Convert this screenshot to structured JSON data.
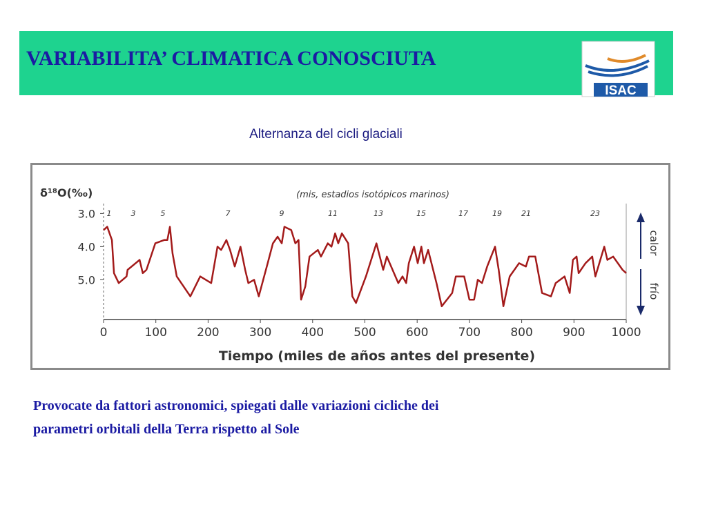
{
  "header": {
    "title": "VARIABILITA’ CLIMATICA CONOSCIUTA",
    "logo": "ISAC"
  },
  "subtitle": "Alternanza del cicli glaciali",
  "chart_data": {
    "type": "line",
    "y_label": "δ¹⁸O(‰)",
    "x_label": "Tiempo (miles de años antes del presente)",
    "annotation": "(mis, estadios isotópicos marinos)",
    "stages": [
      "1",
      "3",
      "5",
      "7",
      "9",
      "11",
      "13",
      "15",
      "17",
      "19",
      "21",
      "23"
    ],
    "side_labels": [
      "calor",
      "frío"
    ],
    "y_reversed": true,
    "xlim": [
      0,
      1000
    ],
    "xticks": [
      0,
      100,
      200,
      300,
      400,
      500,
      600,
      700,
      800,
      900,
      1000
    ],
    "ylim": [
      2.7,
      6.2
    ],
    "yticks": [
      {
        "value": 3,
        "label": "3.0"
      },
      {
        "value": 4,
        "label": "4.0"
      },
      {
        "value": 5,
        "label": "5.0"
      }
    ],
    "series": [
      {
        "color": "#a31a1a",
        "x": [
          0,
          7,
          16,
          20,
          29,
          44,
          46,
          69,
          75,
          82,
          99,
          116,
          122,
          127,
          132,
          140,
          166,
          185,
          206,
          218,
          225,
          235,
          242,
          251,
          262,
          271,
          277,
          288,
          297,
          314,
          324,
          333,
          341,
          346,
          359,
          367,
          373,
          378,
          386,
          394,
          410,
          416,
          429,
          436,
          443,
          449,
          456,
          468,
          476,
          483,
          502,
          522,
          535,
          542,
          564,
          572,
          579,
          584,
          594,
          601,
          608,
          613,
          621,
          637,
          647,
          667,
          674,
          690,
          700,
          709,
          716,
          724,
          734,
          749,
          756,
          765,
          777,
          795,
          808,
          814,
          826,
          839,
          856,
          865,
          882,
          892,
          898,
          905,
          909,
          922,
          935,
          941,
          958,
          964,
          975,
          993,
          1000
        ],
        "values": [
          3.5,
          3.4,
          3.8,
          4.8,
          5.1,
          4.9,
          4.7,
          4.4,
          4.8,
          4.7,
          3.9,
          3.8,
          3.8,
          3.4,
          4.2,
          4.9,
          5.5,
          4.9,
          5.1,
          4.0,
          4.1,
          3.8,
          4.1,
          4.6,
          4.0,
          4.7,
          5.1,
          5.0,
          5.5,
          4.5,
          3.9,
          3.7,
          3.9,
          3.4,
          3.5,
          3.9,
          3.8,
          5.6,
          5.2,
          4.3,
          4.1,
          4.3,
          3.9,
          4.0,
          3.6,
          3.9,
          3.6,
          3.9,
          5.5,
          5.7,
          4.9,
          3.9,
          4.7,
          4.3,
          5.1,
          4.9,
          5.1,
          4.5,
          4.0,
          4.5,
          4.0,
          4.5,
          4.1,
          5.1,
          5.8,
          5.4,
          4.9,
          4.9,
          5.6,
          5.6,
          5.0,
          5.1,
          4.6,
          4.0,
          4.7,
          5.8,
          4.9,
          4.5,
          4.6,
          4.3,
          4.3,
          5.4,
          5.5,
          5.1,
          4.9,
          5.4,
          4.4,
          4.3,
          4.8,
          4.5,
          4.3,
          4.9,
          4.0,
          4.4,
          4.3,
          4.7,
          4.8
        ]
      }
    ]
  },
  "caption": [
    "Provocate da fattori astronomici, spiegati dalle variazioni cicliche dei",
    "parametri orbitali della Terra rispetto al Sole"
  ]
}
